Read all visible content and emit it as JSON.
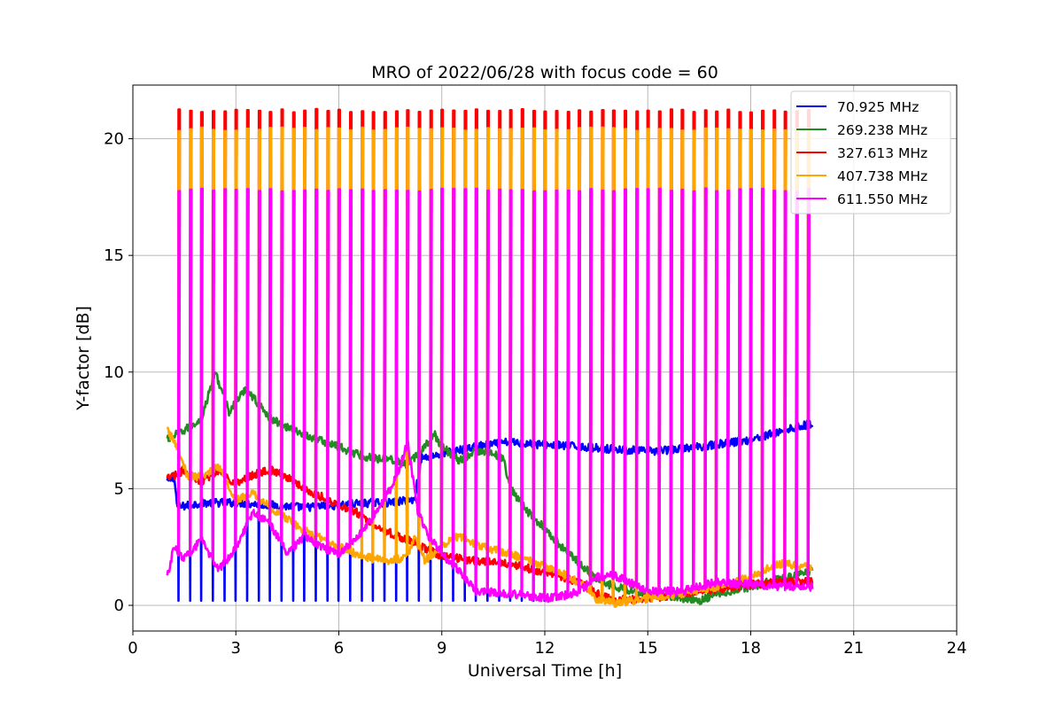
{
  "chart_data": {
    "type": "line",
    "title": "MRO of 2022/06/28 with focus code = 60",
    "xlabel": "Universal Time [h]",
    "ylabel": "Y-factor [dB]",
    "xlim": [
      0,
      24
    ],
    "ylim": [
      -1.1,
      22.3
    ],
    "xticks": [
      0,
      3,
      6,
      9,
      12,
      15,
      18,
      21,
      24
    ],
    "yticks": [
      0,
      5,
      10,
      15,
      20
    ],
    "grid": true,
    "legend_position": "top-right",
    "series": [
      {
        "name": " 70.925 MHz",
        "color": "#0000ff",
        "x": [
          1.0,
          1.2,
          1.3,
          2.0,
          3.0,
          4.0,
          5.0,
          6.0,
          7.0,
          7.5,
          8.0,
          8.2,
          8.4,
          9.0,
          10.0,
          11.0,
          11.8,
          13.0,
          14.0,
          15.0,
          16.0,
          17.0,
          18.0,
          19.0,
          19.8
        ],
        "values": [
          5.3,
          5.5,
          4.2,
          4.4,
          4.4,
          4.3,
          4.2,
          4.3,
          4.4,
          4.4,
          4.5,
          4.5,
          6.3,
          6.5,
          6.8,
          7.0,
          6.9,
          6.8,
          6.7,
          6.6,
          6.7,
          6.9,
          7.1,
          7.5,
          7.8
        ],
        "spike_baseline": 0.2,
        "spike_xrange": [
          1.1,
          12.3
        ]
      },
      {
        "name": "269.238 MHz",
        "color": "#228b22",
        "x": [
          1.0,
          1.5,
          2.0,
          2.4,
          2.8,
          3.3,
          4.0,
          5.0,
          6.0,
          6.5,
          7.0,
          7.5,
          8.0,
          8.5,
          8.8,
          9.0,
          9.5,
          10.0,
          10.5,
          10.8,
          11.0,
          11.5,
          12.0,
          12.5,
          13.0,
          13.5,
          14.0,
          15.0,
          16.0,
          16.5,
          17.0,
          18.0,
          19.0,
          19.8
        ],
        "values": [
          7.1,
          7.5,
          8.0,
          10.0,
          8.3,
          9.3,
          8.0,
          7.3,
          6.8,
          6.5,
          6.3,
          6.3,
          6.0,
          6.8,
          7.3,
          6.8,
          6.2,
          6.6,
          6.5,
          6.3,
          5.0,
          4.0,
          3.3,
          2.5,
          1.8,
          1.2,
          0.8,
          0.5,
          0.3,
          0.2,
          0.5,
          0.8,
          1.2,
          1.5
        ]
      },
      {
        "name": "327.613 MHz",
        "color": "#ff0000",
        "x": [
          1.0,
          1.5,
          2.0,
          2.5,
          3.0,
          3.5,
          4.0,
          4.5,
          5.0,
          6.0,
          6.5,
          7.0,
          7.5,
          8.0,
          9.0,
          10.0,
          11.0,
          12.0,
          13.0,
          13.5,
          14.0,
          15.0,
          16.0,
          17.0,
          18.0,
          19.0,
          19.8
        ],
        "values": [
          5.4,
          5.8,
          5.3,
          5.8,
          5.2,
          5.6,
          5.8,
          5.5,
          5.0,
          4.3,
          4.0,
          3.5,
          3.1,
          2.8,
          2.1,
          1.9,
          1.8,
          1.4,
          1.0,
          0.5,
          0.2,
          0.3,
          0.5,
          0.7,
          0.9,
          1.0,
          1.0
        ],
        "peak_level": 21.2
      },
      {
        "name": "407.738 MHz",
        "color": "#ffa500",
        "x": [
          1.0,
          1.3,
          1.6,
          2.0,
          2.5,
          3.0,
          3.5,
          4.0,
          5.0,
          6.0,
          6.5,
          7.0,
          7.5,
          8.0,
          8.2,
          8.5,
          9.0,
          9.5,
          10.0,
          11.0,
          12.0,
          13.0,
          13.5,
          14.0,
          15.0,
          16.0,
          17.0,
          18.0,
          18.5,
          19.0,
          19.8
        ],
        "values": [
          7.5,
          6.8,
          5.5,
          5.5,
          6.0,
          4.5,
          4.8,
          4.2,
          3.2,
          2.5,
          2.2,
          2.0,
          1.9,
          2.1,
          3.0,
          1.9,
          2.5,
          3.0,
          2.6,
          2.2,
          1.7,
          1.0,
          0.3,
          0.1,
          0.3,
          0.5,
          0.8,
          1.2,
          1.6,
          1.8,
          1.6
        ],
        "peak_level": 20.4
      },
      {
        "name": "611.550 MHz",
        "color": "#ff00ff",
        "x": [
          1.0,
          1.2,
          1.5,
          2.0,
          2.5,
          3.0,
          3.5,
          4.0,
          4.5,
          5.0,
          5.5,
          6.0,
          6.5,
          7.0,
          7.5,
          7.8,
          8.0,
          8.3,
          8.6,
          9.0,
          9.5,
          10.0,
          11.0,
          12.0,
          12.5,
          13.0,
          13.5,
          14.0,
          15.0,
          16.0,
          17.0,
          18.0,
          19.0,
          19.8
        ],
        "values": [
          1.2,
          2.5,
          2.0,
          2.8,
          1.5,
          2.5,
          4.0,
          3.5,
          2.2,
          3.0,
          2.5,
          2.2,
          2.8,
          3.8,
          5.0,
          6.0,
          7.0,
          4.0,
          3.0,
          2.2,
          1.5,
          0.6,
          0.5,
          0.3,
          0.4,
          0.6,
          1.2,
          1.3,
          0.6,
          0.6,
          1.0,
          0.9,
          0.8,
          0.8
        ],
        "peak_level": 17.8
      }
    ],
    "spike_period_h": 0.3333
  }
}
